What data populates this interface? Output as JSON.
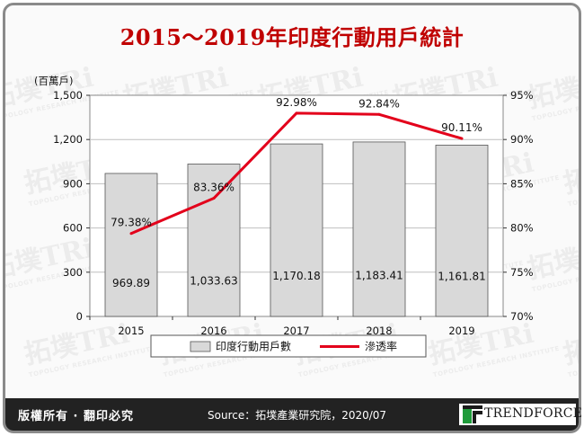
{
  "chart_data": {
    "type": "bar",
    "title": "2015～2019年印度行動用戶統計",
    "categories": [
      "2015",
      "2016",
      "2017",
      "2018",
      "2019"
    ],
    "y_left_unit": "(百萬戶)",
    "y_left_lim": [
      0,
      1500
    ],
    "y_left_ticks": [
      "0",
      "300",
      "600",
      "900",
      "1,200",
      "1,500"
    ],
    "y_left_tick_values": [
      0,
      300,
      600,
      900,
      1200,
      1500
    ],
    "y_right_lim": [
      70,
      95
    ],
    "y_right_ticks": [
      "70%",
      "75%",
      "80%",
      "85%",
      "90%",
      "95%"
    ],
    "y_right_tick_values": [
      70,
      75,
      80,
      85,
      90,
      95
    ],
    "series": [
      {
        "name": "印度行動用戶數",
        "type": "bar",
        "axis": "left",
        "color": "#d9d9d9",
        "values": [
          969.89,
          1033.63,
          1170.18,
          1183.41,
          1161.81
        ],
        "labels": [
          "969.89",
          "1,033.63",
          "1,170.18",
          "1,183.41",
          "1,161.81"
        ]
      },
      {
        "name": "滲透率",
        "type": "line",
        "axis": "right",
        "color": "#e3001b",
        "values": [
          79.38,
          83.36,
          92.98,
          92.84,
          90.11
        ],
        "labels": [
          "79.38%",
          "83.36%",
          "92.98%",
          "92.84%",
          "90.11%"
        ]
      }
    ],
    "legend_position": "bottom"
  },
  "footer": {
    "rights": "版權所有 · 翻印必究",
    "source": "Source：拓墣產業研究院，2020/07",
    "logo_text": "TRENDFORCE"
  },
  "watermark": {
    "text": "拓墣TRi",
    "sub": "TOPOLOGY RESEARCH INSTITUTE"
  }
}
